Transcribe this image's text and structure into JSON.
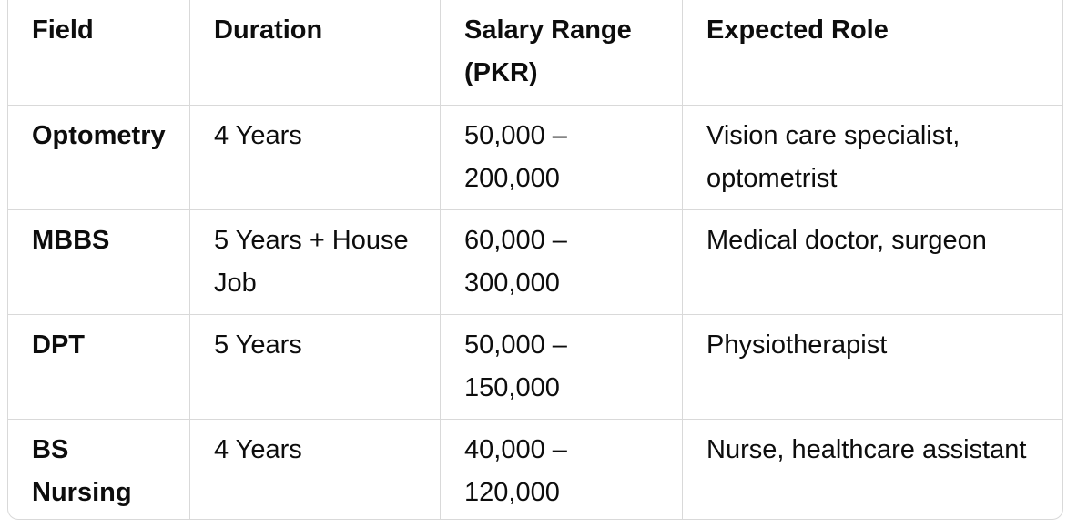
{
  "colors": {
    "background": "#ffffff",
    "border": "#d9d9d9",
    "text": "#0d0d0d"
  },
  "table": {
    "headers": [
      [
        "Field"
      ],
      [
        "Duration"
      ],
      [
        "Salary Range",
        "(PKR)"
      ],
      [
        "Expected Role"
      ]
    ],
    "rows": [
      {
        "cells": [
          [
            "Optometry"
          ],
          [
            "4 Years"
          ],
          [
            "50,000 –",
            "200,000"
          ],
          [
            "Vision care specialist,",
            "optometrist"
          ]
        ]
      },
      {
        "cells": [
          [
            "MBBS"
          ],
          [
            "5 Years + House",
            "Job"
          ],
          [
            "60,000 –",
            "300,000"
          ],
          [
            "Medical doctor, surgeon"
          ]
        ]
      },
      {
        "cells": [
          [
            "DPT"
          ],
          [
            "5 Years"
          ],
          [
            "50,000 –",
            "150,000"
          ],
          [
            "Physiotherapist"
          ]
        ]
      },
      {
        "cells": [
          [
            "BS",
            "Nursing"
          ],
          [
            "4 Years"
          ],
          [
            "40,000 –",
            "120,000"
          ],
          [
            "Nurse, healthcare assistant"
          ]
        ]
      }
    ]
  },
  "chart_data": {
    "type": "table",
    "columns": [
      "Field",
      "Duration",
      "Salary Range (PKR)",
      "Expected Role"
    ],
    "rows": [
      [
        "Optometry",
        "4 Years",
        "50,000 – 200,000",
        "Vision care specialist, optometrist"
      ],
      [
        "MBBS",
        "5 Years + House Job",
        "60,000 – 300,000",
        "Medical doctor, surgeon"
      ],
      [
        "DPT",
        "5 Years",
        "50,000 – 150,000",
        "Physiotherapist"
      ],
      [
        "BS Nursing",
        "4 Years",
        "40,000 – 120,000",
        "Nurse, healthcare assistant"
      ]
    ]
  }
}
